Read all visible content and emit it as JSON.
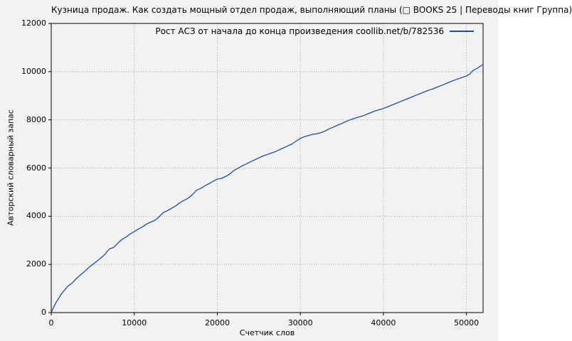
{
  "colors": {
    "background": "#f2f2f2",
    "line": "#1f4e9f",
    "grid": "#aaaaaa",
    "border": "#000000",
    "text": "#000000"
  },
  "chart_data": {
    "type": "line",
    "title": "Кузница продаж. Как создать мощный отдел продаж, выполняющий планы (□ BOOKS 25 | Переводы книг Группа)",
    "xlabel": "Счетчик слов",
    "ylabel": "Авторский словарный запас",
    "xlim": [
      0,
      52000
    ],
    "ylim": [
      0,
      12000
    ],
    "xticks": [
      0,
      10000,
      20000,
      30000,
      40000,
      50000
    ],
    "yticks": [
      0,
      2000,
      4000,
      6000,
      8000,
      10000,
      12000
    ],
    "grid": true,
    "legend_position": "top-right-inside",
    "series": [
      {
        "name": "Рост АСЗ от начала до конца произведения coollib.net/b/782536",
        "points": [
          [
            0,
            0
          ],
          [
            200,
            150
          ],
          [
            400,
            300
          ],
          [
            600,
            430
          ],
          [
            800,
            540
          ],
          [
            1000,
            650
          ],
          [
            1200,
            760
          ],
          [
            1400,
            850
          ],
          [
            1600,
            930
          ],
          [
            1800,
            1010
          ],
          [
            2000,
            1090
          ],
          [
            2250,
            1160
          ],
          [
            2500,
            1220
          ],
          [
            2750,
            1310
          ],
          [
            3000,
            1400
          ],
          [
            3250,
            1480
          ],
          [
            3500,
            1560
          ],
          [
            3750,
            1630
          ],
          [
            4000,
            1700
          ],
          [
            4250,
            1780
          ],
          [
            4500,
            1860
          ],
          [
            4750,
            1930
          ],
          [
            5000,
            2000
          ],
          [
            5250,
            2070
          ],
          [
            5500,
            2130
          ],
          [
            5750,
            2200
          ],
          [
            6000,
            2280
          ],
          [
            6250,
            2350
          ],
          [
            6500,
            2430
          ],
          [
            6750,
            2540
          ],
          [
            7000,
            2640
          ],
          [
            7250,
            2670
          ],
          [
            7500,
            2700
          ],
          [
            7750,
            2790
          ],
          [
            8000,
            2870
          ],
          [
            8250,
            2950
          ],
          [
            8500,
            3030
          ],
          [
            8750,
            3080
          ],
          [
            9000,
            3130
          ],
          [
            9250,
            3200
          ],
          [
            9500,
            3260
          ],
          [
            9750,
            3310
          ],
          [
            10000,
            3360
          ],
          [
            10500,
            3470
          ],
          [
            11000,
            3560
          ],
          [
            11500,
            3680
          ],
          [
            12000,
            3760
          ],
          [
            12500,
            3830
          ],
          [
            13000,
            3980
          ],
          [
            13500,
            4150
          ],
          [
            14000,
            4230
          ],
          [
            14500,
            4330
          ],
          [
            15000,
            4430
          ],
          [
            15500,
            4560
          ],
          [
            16000,
            4660
          ],
          [
            16500,
            4750
          ],
          [
            17000,
            4890
          ],
          [
            17500,
            5080
          ],
          [
            18000,
            5150
          ],
          [
            18500,
            5260
          ],
          [
            19000,
            5350
          ],
          [
            19500,
            5450
          ],
          [
            20000,
            5540
          ],
          [
            20500,
            5570
          ],
          [
            21000,
            5650
          ],
          [
            21500,
            5750
          ],
          [
            22000,
            5900
          ],
          [
            22500,
            5990
          ],
          [
            23000,
            6090
          ],
          [
            23500,
            6170
          ],
          [
            24000,
            6260
          ],
          [
            24500,
            6340
          ],
          [
            25000,
            6420
          ],
          [
            25500,
            6500
          ],
          [
            26000,
            6560
          ],
          [
            26500,
            6620
          ],
          [
            27000,
            6680
          ],
          [
            27500,
            6760
          ],
          [
            28000,
            6840
          ],
          [
            28500,
            6920
          ],
          [
            29000,
            7000
          ],
          [
            29500,
            7120
          ],
          [
            30000,
            7230
          ],
          [
            30500,
            7300
          ],
          [
            31000,
            7350
          ],
          [
            31500,
            7400
          ],
          [
            32000,
            7420
          ],
          [
            32500,
            7470
          ],
          [
            33000,
            7540
          ],
          [
            33500,
            7630
          ],
          [
            34000,
            7700
          ],
          [
            34500,
            7780
          ],
          [
            35000,
            7850
          ],
          [
            35500,
            7930
          ],
          [
            36000,
            8000
          ],
          [
            36500,
            8060
          ],
          [
            37000,
            8110
          ],
          [
            37500,
            8160
          ],
          [
            38000,
            8230
          ],
          [
            38500,
            8300
          ],
          [
            39000,
            8370
          ],
          [
            39500,
            8420
          ],
          [
            40000,
            8470
          ],
          [
            40500,
            8540
          ],
          [
            41000,
            8610
          ],
          [
            41500,
            8680
          ],
          [
            42000,
            8750
          ],
          [
            42500,
            8820
          ],
          [
            43000,
            8890
          ],
          [
            43500,
            8960
          ],
          [
            44000,
            9030
          ],
          [
            44500,
            9100
          ],
          [
            45000,
            9170
          ],
          [
            45500,
            9230
          ],
          [
            46000,
            9290
          ],
          [
            46500,
            9360
          ],
          [
            47000,
            9430
          ],
          [
            47500,
            9500
          ],
          [
            48000,
            9570
          ],
          [
            48500,
            9640
          ],
          [
            49000,
            9700
          ],
          [
            49500,
            9760
          ],
          [
            50000,
            9820
          ],
          [
            50400,
            9900
          ],
          [
            50700,
            10020
          ],
          [
            51000,
            10090
          ],
          [
            51400,
            10160
          ],
          [
            51700,
            10230
          ],
          [
            51900,
            10290
          ]
        ]
      }
    ]
  }
}
